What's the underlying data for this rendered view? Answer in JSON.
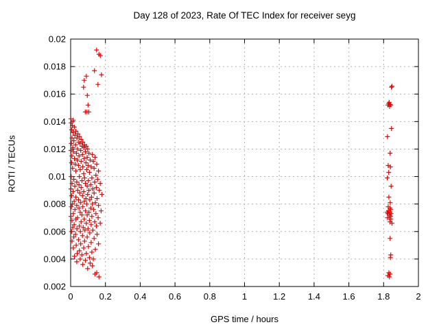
{
  "chart": {
    "title": "Day 128 of 2023, Rate Of TEC Index for receiver seyg",
    "xlabel": "GPS time / hours",
    "ylabel": "ROTI / TECUs"
  },
  "colors": {
    "marker": "#ee0000",
    "grid": "#b0b0b0",
    "axis": "#000000",
    "background": "#ffffff"
  },
  "chart_data": {
    "type": "scatter",
    "title": "Day 128 of 2023, Rate Of TEC Index for receiver seyg",
    "xlabel": "GPS time / hours",
    "ylabel": "ROTI / TECUs",
    "xlim": [
      0,
      2
    ],
    "ylim": [
      0.002,
      0.02
    ],
    "x_ticks": [
      0,
      0.2,
      0.4,
      0.6,
      0.8,
      1,
      1.2,
      1.4,
      1.6,
      1.8,
      2
    ],
    "x_tick_labels": [
      "0",
      "0.2",
      "0.4",
      "0.6",
      "0.8",
      "1",
      "1.2",
      "1.4",
      "1.6",
      "1.8",
      "2"
    ],
    "y_ticks": [
      0.002,
      0.004,
      0.006,
      0.008,
      0.01,
      0.012,
      0.014,
      0.016,
      0.018,
      0.02
    ],
    "y_tick_labels": [
      "0.002",
      "0.004",
      "0.006",
      "0.008",
      "0.01",
      "0.012",
      "0.014",
      "0.016",
      "0.018",
      "0.02"
    ],
    "grid": true,
    "legend": false,
    "marker": {
      "shape": "plus",
      "color": "#ee0000",
      "size": 7
    },
    "series": [
      {
        "name": "ROTI",
        "points": [
          [
            0.149,
            0.0192
          ],
          [
            0.163,
            0.0189
          ],
          [
            0.171,
            0.0188
          ],
          [
            0.137,
            0.0177
          ],
          [
            0.177,
            0.0174
          ],
          [
            0.09,
            0.0173
          ],
          [
            0.078,
            0.017
          ],
          [
            0.157,
            0.0167
          ],
          [
            0.074,
            0.0165
          ],
          [
            0.096,
            0.0159
          ],
          [
            0.1,
            0.0152
          ],
          [
            0.084,
            0.0147
          ],
          [
            0.094,
            0.0147
          ],
          [
            0.104,
            0.0147
          ],
          [
            0.015,
            0.0141
          ],
          [
            0.001,
            0.0142
          ],
          [
            0.003,
            0.0139
          ],
          [
            0.01,
            0.0137
          ],
          [
            0.021,
            0.0136
          ],
          [
            0.006,
            0.0134
          ],
          [
            0.03,
            0.0133
          ],
          [
            0.014,
            0.0132
          ],
          [
            0.042,
            0.0131
          ],
          [
            0.025,
            0.013
          ],
          [
            0.051,
            0.0129
          ],
          [
            0.008,
            0.0128
          ],
          [
            0.036,
            0.0128
          ],
          [
            0.06,
            0.0127
          ],
          [
            0.018,
            0.0126
          ],
          [
            0.047,
            0.0125
          ],
          [
            0.07,
            0.0125
          ],
          [
            0.004,
            0.0124
          ],
          [
            0.055,
            0.0124
          ],
          [
            0.08,
            0.0123
          ],
          [
            0.028,
            0.0123
          ],
          [
            0.066,
            0.0122
          ],
          [
            0.09,
            0.0122
          ],
          [
            0.012,
            0.0121
          ],
          [
            0.076,
            0.0121
          ],
          [
            0.098,
            0.012
          ],
          [
            0.04,
            0.012
          ],
          [
            0.002,
            0.0119
          ],
          [
            0.058,
            0.0119
          ],
          [
            0.085,
            0.0118
          ],
          [
            0.016,
            0.0118
          ],
          [
            0.105,
            0.0117
          ],
          [
            0.033,
            0.0117
          ],
          [
            0.068,
            0.0116
          ],
          [
            0.125,
            0.0116
          ],
          [
            0.007,
            0.0115
          ],
          [
            0.048,
            0.0115
          ],
          [
            0.095,
            0.0114
          ],
          [
            0.14,
            0.0114
          ],
          [
            0.022,
            0.0113
          ],
          [
            0.078,
            0.0113
          ],
          [
            0.112,
            0.0112
          ],
          [
            0.038,
            0.0112
          ],
          [
            0.06,
            0.0111
          ],
          [
            0.13,
            0.0111
          ],
          [
            0.005,
            0.011
          ],
          [
            0.088,
            0.011
          ],
          [
            0.15,
            0.0109
          ],
          [
            0.026,
            0.0109
          ],
          [
            0.1,
            0.0108
          ],
          [
            0.045,
            0.0108
          ],
          [
            0.118,
            0.0107
          ],
          [
            0.07,
            0.0107
          ],
          [
            0.011,
            0.0106
          ],
          [
            0.135,
            0.0106
          ],
          [
            0.055,
            0.0105
          ],
          [
            0.092,
            0.0105
          ],
          [
            0.16,
            0.0104
          ],
          [
            0.03,
            0.0104
          ],
          [
            0.108,
            0.0103
          ],
          [
            0.075,
            0.0102
          ],
          [
            0.145,
            0.0101
          ],
          [
            0.003,
            0.01
          ],
          [
            0.05,
            0.01
          ],
          [
            0.122,
            0.0099
          ],
          [
            0.08,
            0.0099
          ],
          [
            0.018,
            0.0098
          ],
          [
            0.155,
            0.0098
          ],
          [
            0.065,
            0.0097
          ],
          [
            0.102,
            0.0097
          ],
          [
            0.035,
            0.0096
          ],
          [
            0.138,
            0.0096
          ],
          [
            0.008,
            0.0095
          ],
          [
            0.085,
            0.0095
          ],
          [
            0.17,
            0.0095
          ],
          [
            0.048,
            0.0094
          ],
          [
            0.115,
            0.0094
          ],
          [
            0.024,
            0.0093
          ],
          [
            0.095,
            0.0093
          ],
          [
            0.148,
            0.0092
          ],
          [
            0.06,
            0.0092
          ],
          [
            0.002,
            0.0091
          ],
          [
            0.128,
            0.0091
          ],
          [
            0.04,
            0.009
          ],
          [
            0.105,
            0.009
          ],
          [
            0.165,
            0.009
          ],
          [
            0.014,
            0.0089
          ],
          [
            0.075,
            0.0089
          ],
          [
            0.135,
            0.0088
          ],
          [
            0.052,
            0.0088
          ],
          [
            0.098,
            0.0087
          ],
          [
            0.18,
            0.0087
          ],
          [
            0.006,
            0.0086
          ],
          [
            0.068,
            0.0086
          ],
          [
            0.12,
            0.0085
          ],
          [
            0.03,
            0.0085
          ],
          [
            0.088,
            0.0084
          ],
          [
            0.152,
            0.0084
          ],
          [
            0.045,
            0.0083
          ],
          [
            0.11,
            0.0083
          ],
          [
            0.02,
            0.0082
          ],
          [
            0.078,
            0.0082
          ],
          [
            0.142,
            0.0081
          ],
          [
            0.058,
            0.0081
          ],
          [
            0.125,
            0.008
          ],
          [
            0.01,
            0.008
          ],
          [
            0.092,
            0.008
          ],
          [
            0.035,
            0.0079
          ],
          [
            0.16,
            0.0079
          ],
          [
            0.07,
            0.0078
          ],
          [
            0.004,
            0.0078
          ],
          [
            0.115,
            0.0077
          ],
          [
            0.048,
            0.0077
          ],
          [
            0.132,
            0.0076
          ],
          [
            0.025,
            0.0076
          ],
          [
            0.085,
            0.0075
          ],
          [
            0.175,
            0.0075
          ],
          [
            0.055,
            0.0074
          ],
          [
            0.105,
            0.0074
          ],
          [
            0.015,
            0.0073
          ],
          [
            0.145,
            0.0073
          ],
          [
            0.065,
            0.0072
          ],
          [
            0.095,
            0.0072
          ],
          [
            0.002,
            0.0071
          ],
          [
            0.122,
            0.0071
          ],
          [
            0.04,
            0.007
          ],
          [
            0.158,
            0.007
          ],
          [
            0.078,
            0.0069
          ],
          [
            0.03,
            0.0069
          ],
          [
            0.108,
            0.0068
          ],
          [
            0.008,
            0.0068
          ],
          [
            0.138,
            0.0067
          ],
          [
            0.06,
            0.0067
          ],
          [
            0.09,
            0.0066
          ],
          [
            0.17,
            0.0066
          ],
          [
            0.02,
            0.0065
          ],
          [
            0.118,
            0.0065
          ],
          [
            0.05,
            0.0064
          ],
          [
            0.148,
            0.0064
          ],
          [
            0.072,
            0.0063
          ],
          [
            0.012,
            0.0063
          ],
          [
            0.1,
            0.0062
          ],
          [
            0.036,
            0.0062
          ],
          [
            0.128,
            0.0061
          ],
          [
            0.082,
            0.0061
          ],
          [
            0.056,
            0.006
          ],
          [
            0.005,
            0.006
          ],
          [
            0.11,
            0.0059
          ],
          [
            0.028,
            0.0058
          ],
          [
            0.152,
            0.0058
          ],
          [
            0.068,
            0.0057
          ],
          [
            0.095,
            0.0056
          ],
          [
            0.018,
            0.0056
          ],
          [
            0.135,
            0.0055
          ],
          [
            0.045,
            0.0054
          ],
          [
            0.08,
            0.0053
          ],
          [
            0.008,
            0.0053
          ],
          [
            0.118,
            0.0052
          ],
          [
            0.058,
            0.0051
          ],
          [
            0.16,
            0.0051
          ],
          [
            0.032,
            0.005
          ],
          [
            0.102,
            0.0049
          ],
          [
            0.075,
            0.0048
          ],
          [
            0.015,
            0.0048
          ],
          [
            0.142,
            0.0047
          ],
          [
            0.05,
            0.0046
          ],
          [
            0.122,
            0.0045
          ],
          [
            0.09,
            0.0044
          ],
          [
            0.038,
            0.0044
          ],
          [
            0.065,
            0.0043
          ],
          [
            0.022,
            0.0042
          ],
          [
            0.108,
            0.0041
          ],
          [
            0.055,
            0.004
          ],
          [
            0.13,
            0.004
          ],
          [
            0.085,
            0.0039
          ],
          [
            0.035,
            0.0038
          ],
          [
            0.112,
            0.0037
          ],
          [
            0.07,
            0.0036
          ],
          [
            0.125,
            0.0035
          ],
          [
            0.098,
            0.0033
          ],
          [
            0.15,
            0.003
          ],
          [
            0.14,
            0.0029
          ],
          [
            0.163,
            0.0027
          ],
          [
            1.845,
            0.0165
          ],
          [
            1.848,
            0.01657
          ],
          [
            1.829,
            0.0153
          ],
          [
            1.837,
            0.01525
          ],
          [
            1.825,
            0.0152
          ],
          [
            1.834,
            0.0151
          ],
          [
            1.841,
            0.0152
          ],
          [
            1.832,
            0.0154
          ],
          [
            1.845,
            0.0135
          ],
          [
            1.822,
            0.0129
          ],
          [
            1.837,
            0.0117
          ],
          [
            1.826,
            0.0108
          ],
          [
            1.839,
            0.0107
          ],
          [
            1.829,
            0.0103
          ],
          [
            1.821,
            0.0099
          ],
          [
            1.843,
            0.0093
          ],
          [
            1.83,
            0.0085
          ],
          [
            1.838,
            0.0081
          ],
          [
            1.826,
            0.0078
          ],
          [
            1.837,
            0.0077
          ],
          [
            1.842,
            0.0076
          ],
          [
            1.828,
            0.0075
          ],
          [
            1.82,
            0.0074
          ],
          [
            1.836,
            0.0074
          ],
          [
            1.843,
            0.0073
          ],
          [
            1.824,
            0.0073
          ],
          [
            1.833,
            0.0072
          ],
          [
            1.84,
            0.0071
          ],
          [
            1.822,
            0.007
          ],
          [
            1.831,
            0.007
          ],
          [
            1.842,
            0.0069
          ],
          [
            1.836,
            0.0067
          ],
          [
            1.848,
            0.0066
          ],
          [
            1.837,
            0.0055
          ],
          [
            1.841,
            0.0043
          ],
          [
            1.839,
            0.0041
          ],
          [
            1.83,
            0.003
          ],
          [
            1.837,
            0.0029
          ],
          [
            1.825,
            0.0028
          ],
          [
            1.833,
            0.0027
          ]
        ]
      }
    ]
  }
}
